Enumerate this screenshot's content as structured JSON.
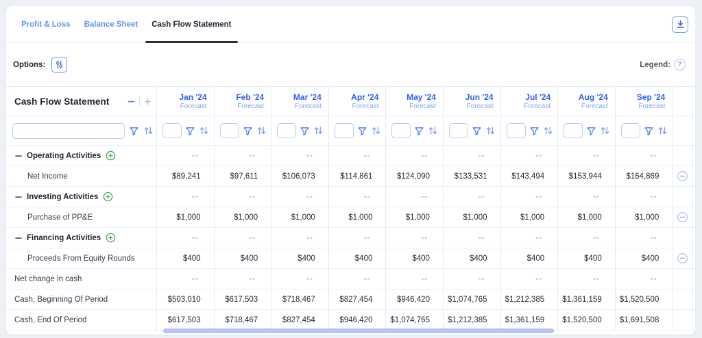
{
  "tabs": [
    {
      "label": "Profit & Loss",
      "active": false
    },
    {
      "label": "Balance Sheet",
      "active": false
    },
    {
      "label": "Cash Flow Statement",
      "active": true
    }
  ],
  "options_bar": {
    "options_label": "Options:",
    "legend_label": "Legend:",
    "help_glyph": "?"
  },
  "table": {
    "title": "Cash Flow Statement",
    "empty_value": "--",
    "columns": [
      {
        "label": "Jan '24",
        "sublabel": "Forecast"
      },
      {
        "label": "Feb '24",
        "sublabel": "Forecast"
      },
      {
        "label": "Mar '24",
        "sublabel": "Forecast"
      },
      {
        "label": "Apr '24",
        "sublabel": "Forecast"
      },
      {
        "label": "May '24",
        "sublabel": "Forecast"
      },
      {
        "label": "Jun '24",
        "sublabel": "Forecast"
      },
      {
        "label": "Jul '24",
        "sublabel": "Forecast"
      },
      {
        "label": "Aug '24",
        "sublabel": "Forecast"
      },
      {
        "label": "Sep '24",
        "sublabel": "Forecast"
      }
    ],
    "rows": [
      {
        "label": "Operating Activities",
        "type": "section",
        "action": false,
        "values": [
          "--",
          "--",
          "--",
          "--",
          "--",
          "--",
          "--",
          "--",
          "--"
        ]
      },
      {
        "label": "Net Income",
        "type": "child",
        "action": true,
        "values": [
          "$89,241",
          "$97,611",
          "$106,073",
          "$114,861",
          "$124,090",
          "$133,531",
          "$143,494",
          "$153,944",
          "$164,869"
        ]
      },
      {
        "label": "Investing Activities",
        "type": "section",
        "action": false,
        "values": [
          "--",
          "--",
          "--",
          "--",
          "--",
          "--",
          "--",
          "--",
          "--"
        ]
      },
      {
        "label": "Purchase of PP&E",
        "type": "child",
        "action": true,
        "values": [
          "$1,000",
          "$1,000",
          "$1,000",
          "$1,000",
          "$1,000",
          "$1,000",
          "$1,000",
          "$1,000",
          "$1,000"
        ]
      },
      {
        "label": "Financing Activities",
        "type": "section",
        "action": false,
        "values": [
          "--",
          "--",
          "--",
          "--",
          "--",
          "--",
          "--",
          "--",
          "--"
        ]
      },
      {
        "label": "Proceeds From Equity Rounds",
        "type": "child",
        "action": true,
        "values": [
          "$400",
          "$400",
          "$400",
          "$400",
          "$400",
          "$400",
          "$400",
          "$400",
          "$400"
        ]
      },
      {
        "label": "Net change in cash",
        "type": "plain",
        "action": false,
        "values": [
          "--",
          "--",
          "--",
          "--",
          "--",
          "--",
          "--",
          "--",
          "--"
        ]
      },
      {
        "label": "Cash, Beginning Of Period",
        "type": "plain",
        "action": false,
        "values": [
          "$503,010",
          "$617,503",
          "$718,467",
          "$827,454",
          "$946,420",
          "$1,074,765",
          "$1,212,385",
          "$1,361,159",
          "$1,520,500"
        ]
      },
      {
        "label": "Cash, End Of Period",
        "type": "plain",
        "action": false,
        "values": [
          "$617,503",
          "$718,467",
          "$827,454",
          "$946,420",
          "$1,074,765",
          "$1,212,385",
          "$1,361,159",
          "$1,520,500",
          "$1,691,508"
        ]
      }
    ]
  },
  "colors": {
    "month_blue": "#2e5fee",
    "forecast_blue": "#84a3f7",
    "tab_blue": "#5e93f6",
    "icon_blue": "#4c7cf4",
    "sort_blue": "#8aa6f3",
    "green": "#3aa64e",
    "minus_circle": "#aebdf2",
    "scrollbar": "#b7c4f2"
  }
}
